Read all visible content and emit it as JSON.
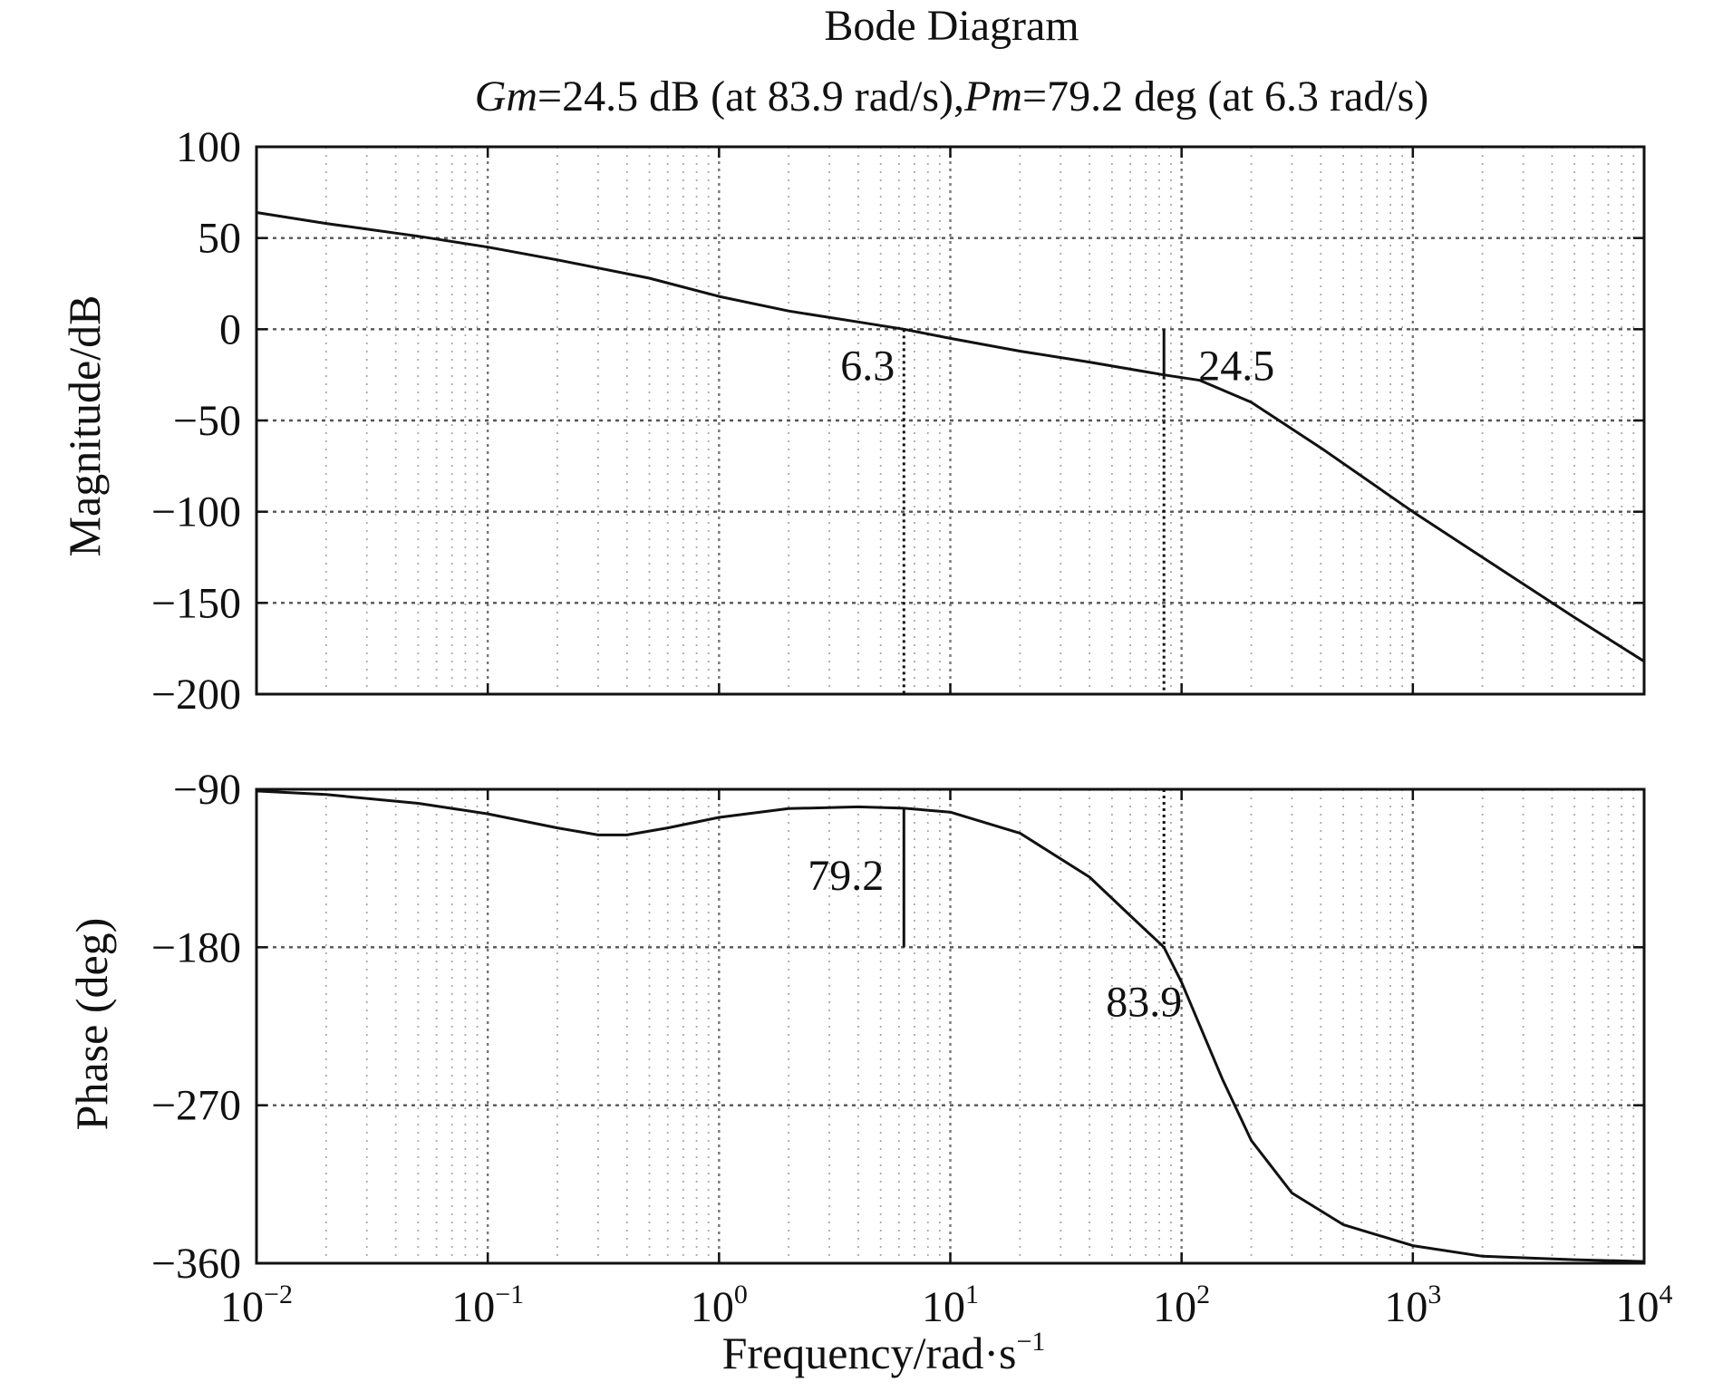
{
  "chart_data": [
    {
      "type": "line",
      "panel": "magnitude",
      "title": "Bode Diagram",
      "subtitle": {
        "gm_symbol": "Gm",
        "gm_text": "=24.5 dB (at 83.9 rad/s),",
        "pm_symbol": "Pm",
        "pm_text": "=79.2 deg (at 6.3 rad/s)"
      },
      "ylabel": "Magnitude/dB",
      "xscale": "log",
      "xlim": [
        0.01,
        10000
      ],
      "ylim": [
        -200,
        100
      ],
      "yticks": [
        100,
        50,
        0,
        -50,
        -100,
        -150,
        -200
      ],
      "ytick_labels": [
        "100",
        "50",
        "0",
        "−50",
        "−100",
        "−150",
        "−200"
      ],
      "grid": true,
      "series": [
        {
          "name": "Magnitude",
          "x": [
            0.01,
            0.02,
            0.05,
            0.1,
            0.2,
            0.5,
            1,
            2,
            4,
            6.3,
            10,
            20,
            40,
            83.9,
            120,
            200,
            400,
            1000,
            2000,
            5000,
            10000
          ],
          "y": [
            64,
            58,
            51,
            45,
            38,
            28,
            18,
            10,
            4,
            0,
            -5,
            -12,
            -18,
            -25,
            -28,
            -40,
            -65,
            -100,
            -125,
            -158,
            -182
          ]
        }
      ],
      "annotations": [
        {
          "text": "6.3",
          "x": 6.3,
          "y": 0
        },
        {
          "text": "24.5",
          "x": 83.9,
          "y": -24.5
        }
      ]
    },
    {
      "type": "line",
      "panel": "phase",
      "ylabel": "Phase (deg)",
      "xlabel": {
        "text": "Frequency/rad·s",
        "superscript": "−1"
      },
      "xscale": "log",
      "xlim": [
        0.01,
        10000
      ],
      "ylim": [
        -360,
        -90
      ],
      "yticks": [
        -90,
        -180,
        -270,
        -360
      ],
      "ytick_labels": [
        "−90",
        "−180",
        "−270",
        "−360"
      ],
      "xticks": [
        0.01,
        0.1,
        1,
        10,
        100,
        1000,
        10000
      ],
      "xtick_labels": [
        {
          "base": "10",
          "exp": "−2"
        },
        {
          "base": "10",
          "exp": "−1"
        },
        {
          "base": "10",
          "exp": "0"
        },
        {
          "base": "10",
          "exp": "1"
        },
        {
          "base": "10",
          "exp": "2"
        },
        {
          "base": "10",
          "exp": "3"
        },
        {
          "base": "10",
          "exp": "4"
        }
      ],
      "grid": true,
      "series": [
        {
          "name": "Phase",
          "x": [
            0.01,
            0.02,
            0.05,
            0.1,
            0.2,
            0.3,
            0.4,
            0.6,
            1,
            2,
            4,
            6.3,
            10,
            20,
            40,
            60,
            83.9,
            100,
            150,
            200,
            300,
            500,
            1000,
            2000,
            5000,
            10000
          ],
          "y": [
            -91,
            -93,
            -98,
            -104,
            -112,
            -116,
            -116,
            -112,
            -106,
            -101,
            -100,
            -100.8,
            -103,
            -115,
            -140,
            -162,
            -180,
            -200,
            -255,
            -290,
            -320,
            -338,
            -350,
            -356,
            -358,
            -359
          ]
        }
      ],
      "annotations": [
        {
          "text": "79.2",
          "x": 6.3,
          "y": -140
        },
        {
          "text": "83.9",
          "x": 83.9,
          "y": -210
        }
      ]
    }
  ]
}
